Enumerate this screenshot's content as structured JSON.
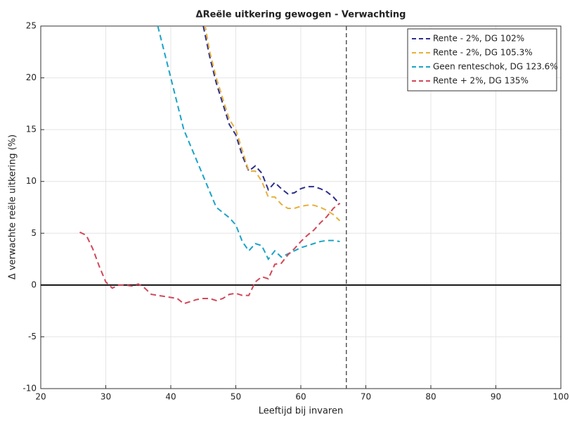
{
  "chart_data": {
    "type": "line",
    "title": "ΔReële uitkering gewogen - Verwachting",
    "x_label": "Leeftijd bij invaren",
    "y_label": "Δ verwachte reële uitkering (%)",
    "x": [
      26,
      27,
      28,
      29,
      30,
      31,
      32,
      33,
      34,
      35,
      36,
      37,
      38,
      39,
      40,
      41,
      42,
      43,
      44,
      45,
      46,
      47,
      48,
      49,
      50,
      51,
      52,
      53,
      54,
      55,
      56,
      57,
      58,
      59,
      60,
      61,
      62,
      63,
      64,
      65,
      66
    ],
    "series": [
      {
        "name": "Rente - 2%, DG 102%",
        "color": "#2b2f8c",
        "values": [
          null,
          null,
          null,
          null,
          null,
          null,
          null,
          null,
          null,
          null,
          null,
          null,
          null,
          null,
          null,
          null,
          null,
          null,
          null,
          25,
          22,
          19.5,
          17.5,
          15.5,
          14.5,
          12.5,
          11,
          11.5,
          10.8,
          9.2,
          9.9,
          9.3,
          8.8,
          8.9,
          9.3,
          9.5,
          9.5,
          9.3,
          9,
          8.5,
          7.8
        ]
      },
      {
        "name": "Rente - 2%, DG 105.3%",
        "color": "#e6b03c",
        "values": [
          null,
          null,
          null,
          null,
          null,
          null,
          null,
          null,
          null,
          null,
          null,
          null,
          null,
          null,
          null,
          null,
          null,
          null,
          null,
          26,
          22.5,
          20,
          18,
          16,
          15,
          13,
          11,
          11,
          10,
          8.5,
          8.5,
          7.8,
          7.4,
          7.4,
          7.6,
          7.7,
          7.7,
          7.5,
          7.2,
          6.8,
          6.2
        ]
      },
      {
        "name": "Geen renteschok, DG 123.6%",
        "color": "#1aa3c8",
        "values": [
          null,
          null,
          null,
          null,
          null,
          null,
          null,
          null,
          null,
          null,
          null,
          null,
          25,
          22.5,
          20,
          17.5,
          15,
          13.5,
          12,
          10.5,
          9,
          7.5,
          7,
          6.5,
          5.8,
          4.2,
          3.3,
          4,
          3.8,
          2.5,
          3.3,
          2.7,
          3,
          3.3,
          3.6,
          3.8,
          4,
          4.2,
          4.3,
          4.3,
          4.2
        ]
      },
      {
        "name": "Rente + 2%, DG 135%",
        "color": "#d0485a",
        "values": [
          5.1,
          4.8,
          3.5,
          1.8,
          0.3,
          -0.3,
          0,
          0,
          -0.1,
          0.1,
          -0.3,
          -0.9,
          -1,
          -1.1,
          -1.2,
          -1.3,
          -1.8,
          -1.6,
          -1.4,
          -1.3,
          -1.3,
          -1.5,
          -1.3,
          -0.9,
          -0.8,
          -1,
          -1,
          0.3,
          0.8,
          0.6,
          2,
          2.1,
          2.9,
          3.5,
          4.2,
          4.8,
          5.3,
          6,
          6.6,
          7.4,
          7.9
        ]
      }
    ],
    "xlim": [
      20,
      100
    ],
    "xticks": [
      20,
      30,
      40,
      50,
      60,
      70,
      80,
      90,
      100
    ],
    "ylim": [
      -10,
      25
    ],
    "yticks": [
      -10,
      -5,
      0,
      5,
      10,
      15,
      20,
      25
    ],
    "grid": true,
    "hline": 0,
    "vline": 67,
    "legend": "top-right"
  }
}
